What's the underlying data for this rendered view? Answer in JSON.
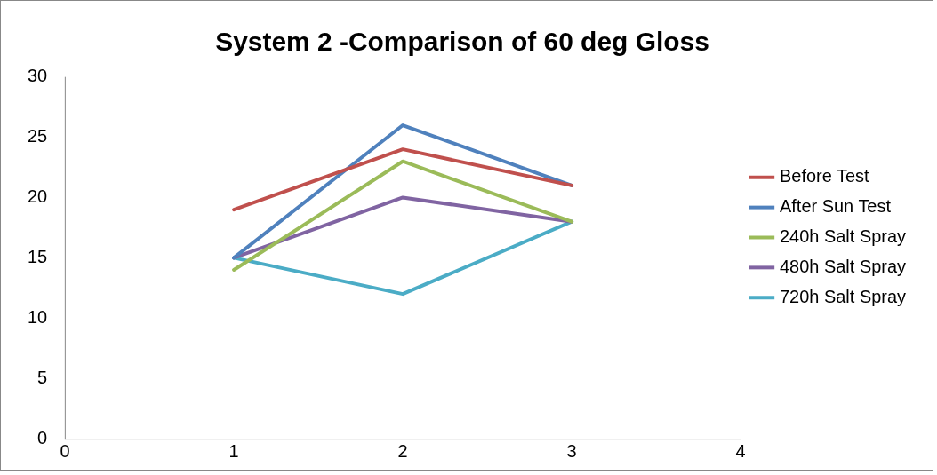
{
  "chart_data": {
    "type": "line",
    "title": "System 2 -Comparison of 60 deg Gloss",
    "x": [
      1,
      2,
      3
    ],
    "series": [
      {
        "name": "Before Test",
        "color": "#c0504d",
        "values": [
          19,
          24,
          21
        ]
      },
      {
        "name": "After Sun Test",
        "color": "#4f81bd",
        "values": [
          15,
          26,
          21
        ]
      },
      {
        "name": "240h Salt Spray",
        "color": "#9bbb59",
        "values": [
          14,
          23,
          18
        ]
      },
      {
        "name": "480h Salt Spray",
        "color": "#8064a2",
        "values": [
          15,
          20,
          18
        ]
      },
      {
        "name": "720h Salt Spray",
        "color": "#4bacc6",
        "values": [
          15,
          12,
          18
        ]
      }
    ],
    "xlim": [
      0,
      4
    ],
    "xticks": [
      0,
      1,
      2,
      3,
      4
    ],
    "ylim": [
      0,
      30
    ],
    "yticks": [
      0,
      5,
      10,
      15,
      20,
      25,
      30
    ],
    "grid": false,
    "legend": "right",
    "marker": "none",
    "line_style": "solid"
  }
}
